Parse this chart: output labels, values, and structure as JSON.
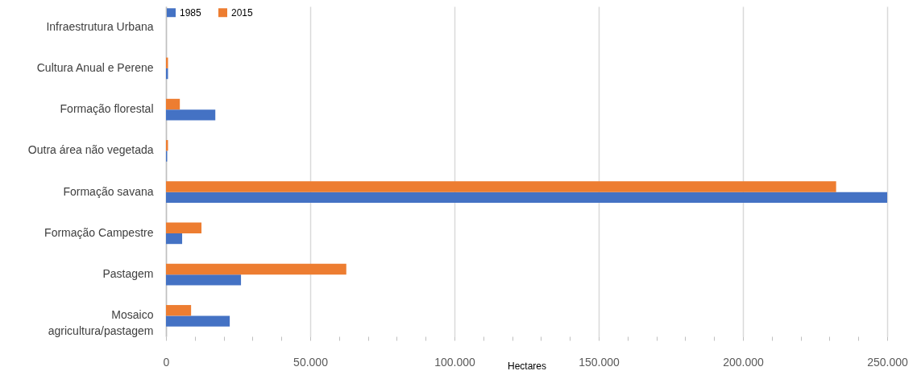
{
  "chart_data": {
    "type": "bar",
    "orientation": "horizontal",
    "xlabel": "Hectares",
    "categories": [
      "Infraestrutura Urbana",
      "Cultura Anual e Perene",
      "Formação florestal",
      "Outra área não vegetada",
      "Formação savana",
      "Formação Campestre",
      "Pastagem",
      "Mosaico agricultura/pastagem"
    ],
    "series": [
      {
        "name": "1985",
        "color": "#4472c4",
        "values": [
          0,
          700,
          17100,
          400,
          250000,
          5600,
          26000,
          22100
        ]
      },
      {
        "name": "2015",
        "color": "#ed7d31",
        "values": [
          0,
          700,
          4800,
          700,
          232300,
          12300,
          62500,
          8700
        ]
      }
    ],
    "xlim": [
      0,
      250000
    ],
    "xticks": [
      {
        "value": 0,
        "label": "0"
      },
      {
        "value": 10000,
        "label": null
      },
      {
        "value": 20000,
        "label": null
      },
      {
        "value": 30000,
        "label": null
      },
      {
        "value": 40000,
        "label": null
      },
      {
        "value": 50000,
        "label": "50.000"
      },
      {
        "value": 60000,
        "label": null
      },
      {
        "value": 70000,
        "label": null
      },
      {
        "value": 80000,
        "label": null
      },
      {
        "value": 90000,
        "label": null
      },
      {
        "value": 100000,
        "label": "100.000"
      },
      {
        "value": 110000,
        "label": null
      },
      {
        "value": 120000,
        "label": null
      },
      {
        "value": 130000,
        "label": null
      },
      {
        "value": 140000,
        "label": null
      },
      {
        "value": 150000,
        "label": "150.000"
      },
      {
        "value": 160000,
        "label": null
      },
      {
        "value": 170000,
        "label": null
      },
      {
        "value": 180000,
        "label": null
      },
      {
        "value": 190000,
        "label": null
      },
      {
        "value": 200000,
        "label": "200.000"
      },
      {
        "value": 210000,
        "label": null
      },
      {
        "value": 220000,
        "label": null
      },
      {
        "value": 230000,
        "label": null
      },
      {
        "value": 240000,
        "label": null
      },
      {
        "value": 250000,
        "label": "250.000"
      }
    ],
    "grid": "x",
    "legend": "top"
  }
}
